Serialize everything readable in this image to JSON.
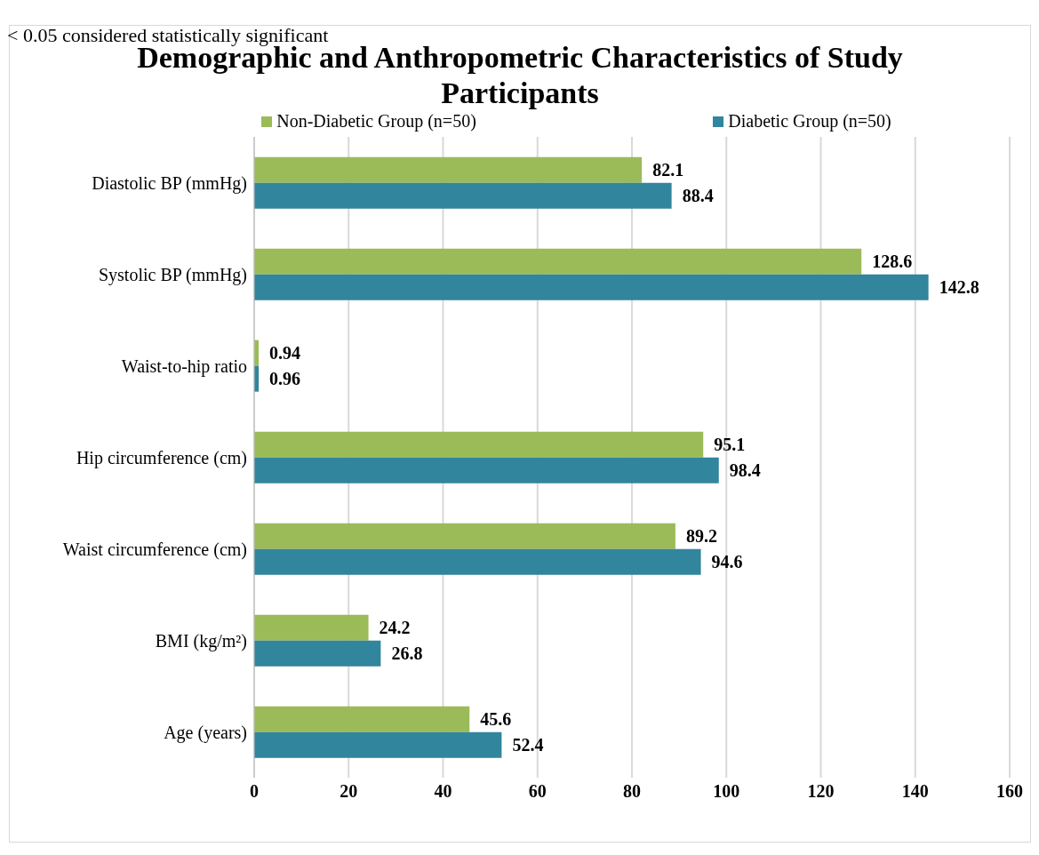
{
  "chart_data": {
    "type": "bar",
    "orientation": "horizontal",
    "title": "Demographic and Anthropometric Characteristics of Study Participants",
    "annotations": [
      "< 0.05 considered statistically significant"
    ],
    "categories": [
      "Diastolic BP (mmHg)",
      "Systolic BP (mmHg)",
      "Waist-to-hip ratio",
      "Hip circumference (cm)",
      "Waist circumference (cm)",
      "BMI (kg/m²)",
      "Age (years)"
    ],
    "series": [
      {
        "name": "Non-Diabetic Group (n=50)",
        "color": "#9bbb59",
        "values": [
          82.1,
          128.6,
          0.94,
          95.1,
          89.2,
          24.2,
          45.6
        ]
      },
      {
        "name": "Diabetic Group (n=50)",
        "color": "#31859c",
        "values": [
          88.4,
          142.8,
          0.96,
          98.4,
          94.6,
          26.8,
          52.4
        ]
      }
    ],
    "xlim": [
      0,
      160
    ],
    "xticks": [
      0,
      20,
      40,
      60,
      80,
      100,
      120,
      140,
      160
    ],
    "grid": "x",
    "legend": "top",
    "data_labels": true
  }
}
